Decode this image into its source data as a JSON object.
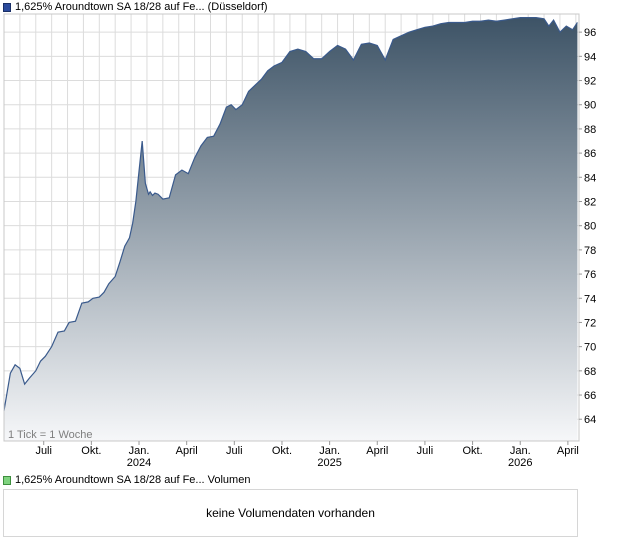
{
  "price_legend": {
    "label": "1,625% Aroundtown SA 18/28 auf Fe... (Düsseldorf)",
    "swatch_color": "#2b4a9c"
  },
  "volume_legend": {
    "label": "1,625% Aroundtown SA 18/28 auf Fe... Volumen",
    "swatch_color": "#7fd37f"
  },
  "tick_note": "1 Tick = 1 Woche",
  "volume_message": "keine Volumendaten vorhanden",
  "colors": {
    "line": "#3a5a8c",
    "fill_top": "#3d5366",
    "fill_bottom": "#f6f7f9",
    "grid": "#dcdcdc"
  },
  "chart_data": {
    "type": "area",
    "series_name": "1,625% Aroundtown SA 18/28 auf Fe... (Düsseldorf)",
    "y_ticks": [
      64,
      66,
      68,
      70,
      72,
      74,
      76,
      78,
      80,
      82,
      84,
      86,
      88,
      90,
      92,
      94,
      96
    ],
    "ylim": [
      62.2,
      97.5
    ],
    "x_ticks": [
      {
        "label": "Juli",
        "year": "",
        "pos": 2.5
      },
      {
        "label": "Okt.",
        "year": "",
        "pos": 5.5
      },
      {
        "label": "Jan.",
        "year": "2024",
        "pos": 8.5
      },
      {
        "label": "April",
        "year": "",
        "pos": 11.5
      },
      {
        "label": "Juli",
        "year": "",
        "pos": 14.5
      },
      {
        "label": "Okt.",
        "year": "",
        "pos": 17.5
      },
      {
        "label": "Jan.",
        "year": "2025",
        "pos": 20.5
      },
      {
        "label": "April",
        "year": "",
        "pos": 23.5
      },
      {
        "label": "Juli",
        "year": "",
        "pos": 26.5
      },
      {
        "label": "Okt.",
        "year": "",
        "pos": 29.5
      },
      {
        "label": "Jan.",
        "year": "2026",
        "pos": 32.5
      },
      {
        "label": "April",
        "year": "",
        "pos": 35.5
      }
    ],
    "xlim": [
      0,
      36.2
    ],
    "grid": true,
    "x": [
      0,
      0.4,
      0.7,
      1.0,
      1.3,
      1.6,
      2.0,
      2.3,
      2.6,
      3.0,
      3.4,
      3.8,
      4.1,
      4.5,
      4.9,
      5.3,
      5.6,
      6.0,
      6.3,
      6.6,
      7.0,
      7.3,
      7.6,
      7.9,
      8.1,
      8.3,
      8.5,
      8.7,
      8.9,
      9.1,
      9.2,
      9.35,
      9.5,
      9.7,
      10.0,
      10.4,
      10.8,
      11.2,
      11.6,
      12.0,
      12.4,
      12.8,
      13.2,
      13.6,
      14.0,
      14.3,
      14.6,
      15.0,
      15.4,
      15.8,
      16.2,
      16.6,
      17.0,
      17.5,
      18.0,
      18.5,
      19.0,
      19.5,
      20.0,
      20.5,
      21.0,
      21.5,
      22.0,
      22.5,
      23.0,
      23.5,
      24.0,
      24.5,
      25.0,
      25.5,
      26.0,
      26.5,
      27.0,
      27.5,
      28.0,
      28.5,
      29.0,
      29.5,
      30.0,
      30.5,
      31.0,
      31.5,
      32.0,
      32.5,
      33.0,
      33.5,
      34.0,
      34.3,
      34.6,
      35.0,
      35.4,
      35.8,
      36.1
    ],
    "y": [
      64.7,
      67.8,
      68.5,
      68.2,
      66.9,
      67.4,
      68.0,
      68.8,
      69.2,
      70.0,
      71.2,
      71.3,
      72.0,
      72.1,
      73.6,
      73.7,
      74.0,
      74.1,
      74.5,
      75.2,
      75.8,
      77.0,
      78.3,
      79.0,
      80.2,
      82.0,
      84.5,
      87.0,
      83.5,
      82.6,
      82.8,
      82.5,
      82.7,
      82.6,
      82.2,
      82.3,
      84.2,
      84.6,
      84.3,
      85.6,
      86.6,
      87.3,
      87.4,
      88.4,
      89.8,
      90.0,
      89.6,
      90.0,
      91.1,
      91.6,
      92.1,
      92.8,
      93.2,
      93.5,
      94.4,
      94.6,
      94.4,
      93.8,
      93.8,
      94.4,
      94.9,
      94.6,
      93.7,
      95.0,
      95.1,
      94.9,
      93.7,
      95.4,
      95.7,
      96.0,
      96.2,
      96.4,
      96.5,
      96.7,
      96.8,
      96.8,
      96.8,
      96.9,
      96.9,
      97.0,
      96.9,
      97.0,
      97.1,
      97.2,
      97.2,
      97.2,
      97.1,
      96.5,
      97.0,
      96.0,
      96.5,
      96.2,
      96.8
    ]
  }
}
